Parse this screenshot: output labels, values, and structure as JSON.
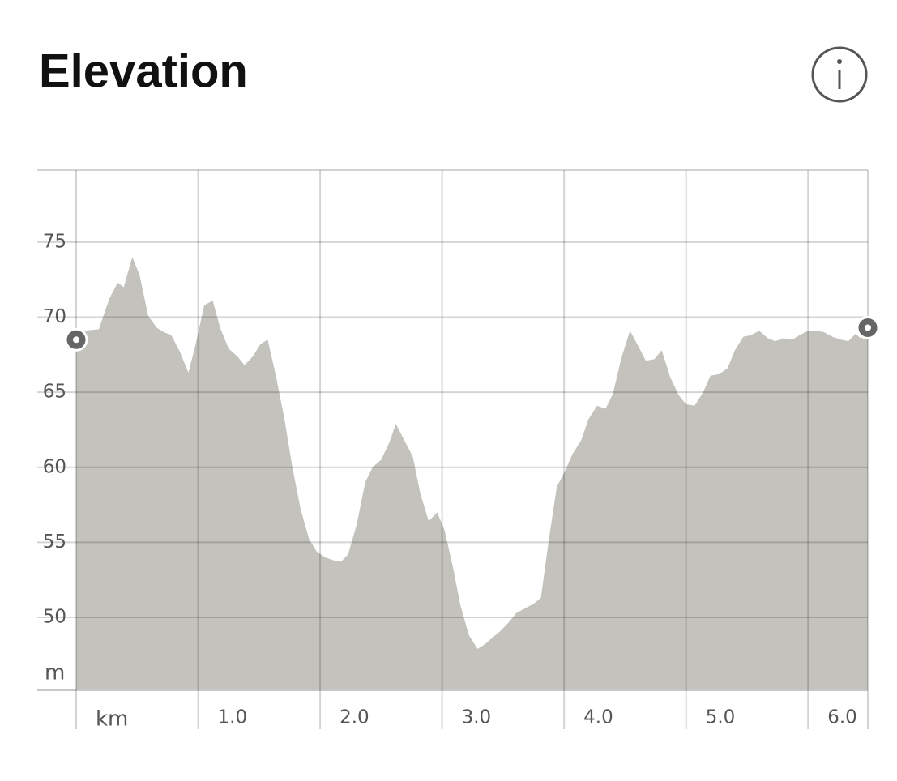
{
  "chart_data": {
    "type": "area",
    "title": "Elevation",
    "x_label": "km",
    "y_label": "m",
    "x": [
      0,
      0.066,
      0.186,
      0.27,
      0.34,
      0.39,
      0.46,
      0.52,
      0.59,
      0.66,
      0.72,
      0.78,
      0.85,
      0.92,
      0.98,
      1.05,
      1.12,
      1.18,
      1.25,
      1.32,
      1.38,
      1.45,
      1.51,
      1.57,
      1.64,
      1.71,
      1.77,
      1.84,
      1.91,
      1.97,
      2.04,
      2.11,
      2.17,
      2.23,
      2.3,
      2.37,
      2.43,
      2.5,
      2.57,
      2.62,
      2.69,
      2.76,
      2.82,
      2.89,
      2.96,
      3.02,
      3.09,
      3.15,
      3.22,
      3.29,
      3.35,
      3.42,
      3.48,
      3.55,
      3.61,
      3.68,
      3.75,
      3.81,
      3.87,
      3.94,
      4.01,
      4.07,
      4.14,
      4.2,
      4.27,
      4.34,
      4.4,
      4.47,
      4.54,
      4.6,
      4.67,
      4.74,
      4.8,
      4.87,
      4.94,
      5.0,
      5.07,
      5.14,
      5.2,
      5.27,
      5.34,
      5.4,
      5.47,
      5.53,
      5.6,
      5.67,
      5.73,
      5.8,
      5.87,
      5.93,
      6.0,
      6.07,
      6.13,
      6.2,
      6.27,
      6.33,
      6.39,
      6.43,
      6.49
    ],
    "values": [
      68.5,
      69.1,
      69.2,
      71.2,
      72.3,
      72.0,
      74.0,
      72.8,
      70.1,
      69.3,
      69.0,
      68.8,
      67.7,
      66.3,
      68.2,
      70.8,
      71.1,
      69.3,
      67.9,
      67.4,
      66.8,
      67.4,
      68.2,
      68.5,
      66.0,
      63.1,
      60.1,
      57.2,
      55.2,
      54.4,
      54.0,
      53.8,
      53.7,
      54.2,
      56.2,
      59.0,
      60.0,
      60.5,
      61.7,
      62.9,
      61.8,
      60.7,
      58.3,
      56.4,
      57.0,
      55.8,
      53.3,
      50.8,
      48.8,
      47.9,
      48.2,
      48.7,
      49.1,
      49.7,
      50.3,
      50.6,
      50.9,
      51.3,
      54.9,
      58.7,
      59.8,
      60.9,
      61.8,
      63.2,
      64.1,
      63.9,
      64.9,
      67.3,
      69.1,
      68.2,
      67.1,
      67.2,
      67.8,
      66.0,
      64.8,
      64.2,
      64.1,
      65.0,
      66.1,
      66.2,
      66.6,
      67.8,
      68.7,
      68.8,
      69.1,
      68.6,
      68.4,
      68.6,
      68.5,
      68.8,
      69.1,
      69.1,
      69.0,
      68.7,
      68.5,
      68.4,
      68.9,
      68.6,
      69.3
    ],
    "color": "#c3c2bd",
    "xlim": [
      0,
      6.49
    ],
    "ylim": [
      45.14,
      79.8
    ],
    "xticks": [
      {
        "value": 1,
        "label": "1.0"
      },
      {
        "value": 2,
        "label": "2.0"
      },
      {
        "value": 3,
        "label": "3.0"
      },
      {
        "value": 4,
        "label": "4.0"
      },
      {
        "value": 5,
        "label": "5.0"
      },
      {
        "value": 6,
        "label": "6.0"
      }
    ],
    "yticks": [
      50,
      55,
      60,
      65,
      70,
      75
    ],
    "grid": true
  }
}
